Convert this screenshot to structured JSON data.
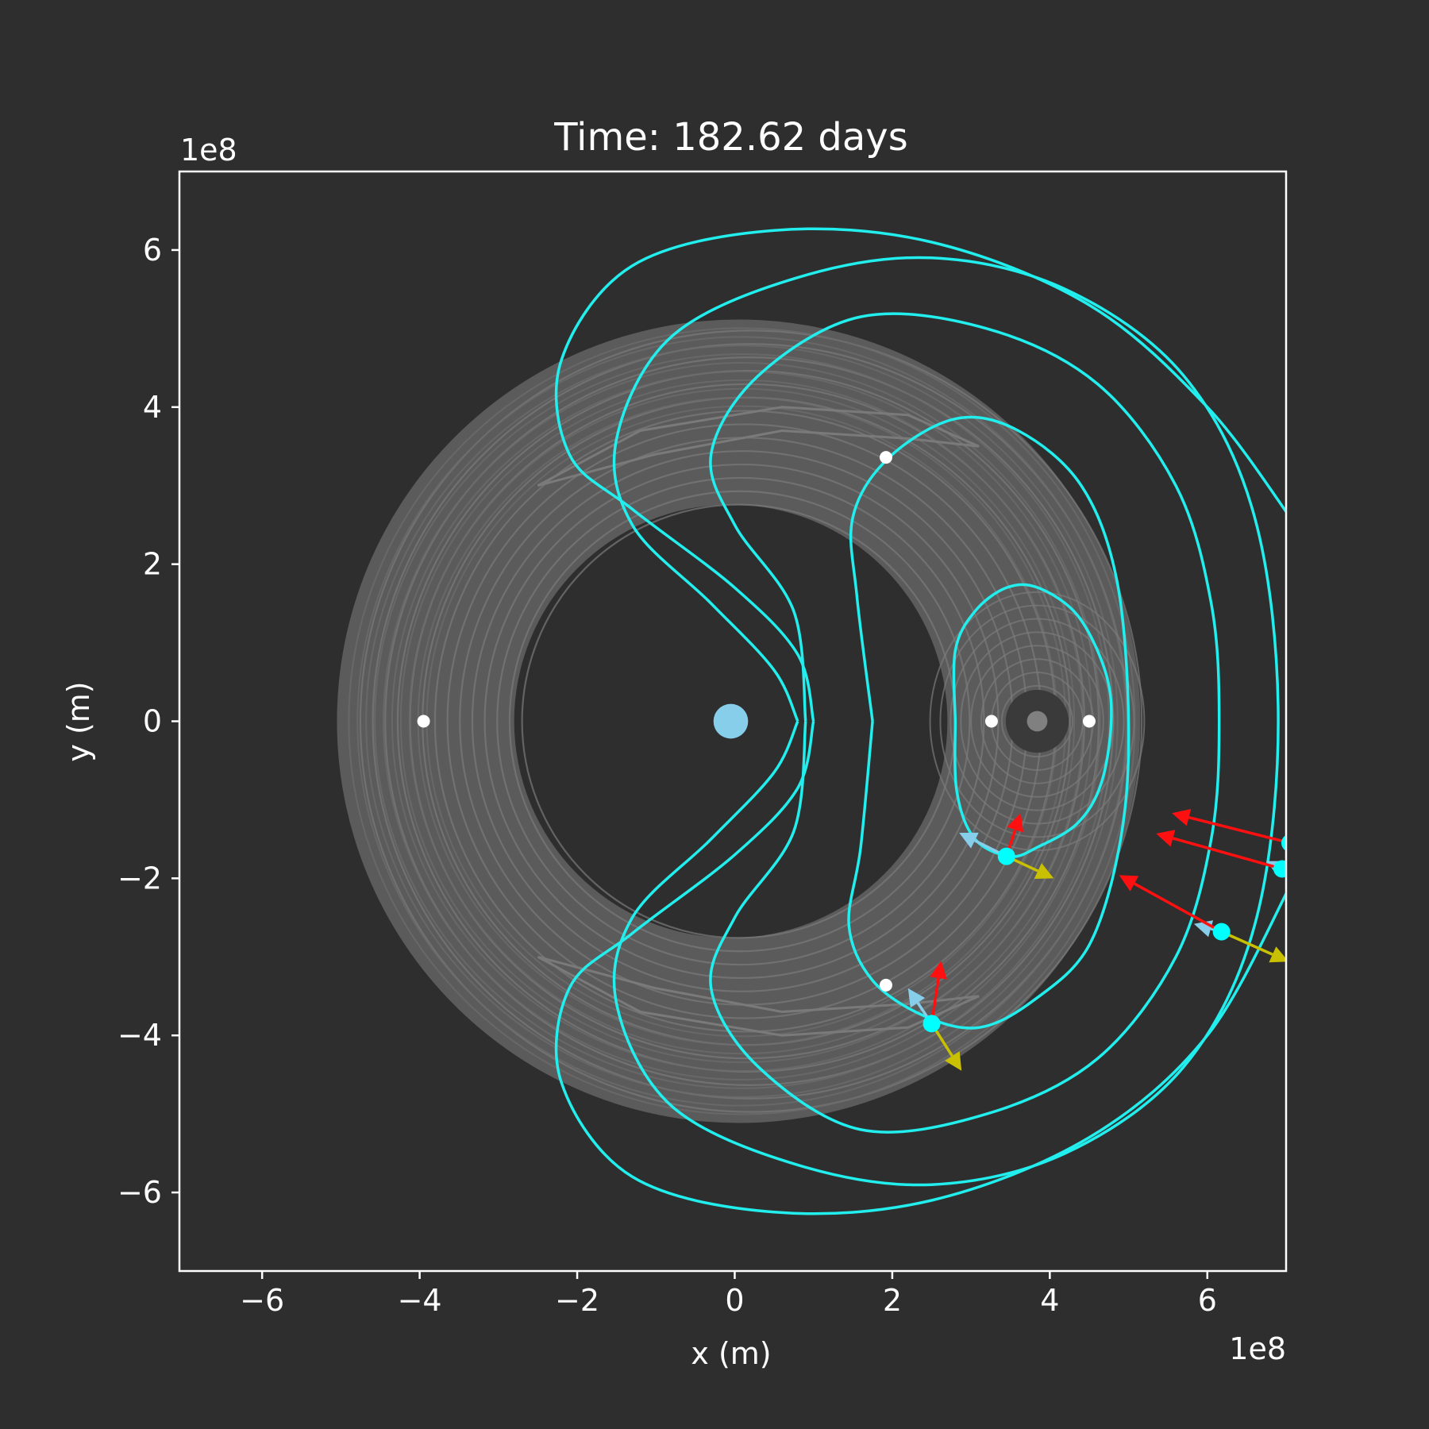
{
  "chart_data": {
    "type": "scatter",
    "title": "Time: 182.62 days",
    "xlabel": "x (m)",
    "ylabel": "y (m)",
    "x_offset_label": "1e8",
    "y_offset_label": "1e8",
    "xlim": [
      -7.05,
      7.0
    ],
    "ylim": [
      -7.0,
      7.0
    ],
    "x_ticks": [
      -6,
      -4,
      -2,
      0,
      2,
      4,
      6
    ],
    "y_ticks": [
      -6,
      -4,
      -2,
      0,
      2,
      4,
      6
    ],
    "x_tick_labels": [
      "−6",
      "−4",
      "−2",
      "0",
      "2",
      "4",
      "6"
    ],
    "y_tick_labels": [
      "−6",
      "−4",
      "−2",
      "0",
      "2",
      "4",
      "6"
    ],
    "grid": false,
    "colors": {
      "background": "#2e2e2e",
      "axes": "#ffffff",
      "contour": "#7a7a7a",
      "contour_fill": "#5e5e5e",
      "zero_velocity_curve": "#22eeee",
      "earth": "#87ceeb",
      "moon": "#808080",
      "lagrange_point": "#ffffff",
      "test_particle": "#00ffff",
      "velocity_arrow": "#87ceeb",
      "acceleration_arrow": "#ff1010",
      "force_arrow": "#c8c000"
    },
    "bodies": [
      {
        "name": "earth",
        "x": -0.05,
        "y": 0.0,
        "radius": 0.22
      },
      {
        "name": "moon",
        "x": 3.84,
        "y": 0.0,
        "radius": 0.13
      }
    ],
    "lagrange_points": [
      {
        "x": 3.26,
        "y": 0.0
      },
      {
        "x": 4.5,
        "y": 0.0
      },
      {
        "x": -3.95,
        "y": 0.0
      },
      {
        "x": 1.92,
        "y": 3.36
      },
      {
        "x": 1.92,
        "y": -3.36
      }
    ],
    "particles": [
      {
        "x": 3.45,
        "y": -1.72,
        "arrows": [
          {
            "kind": "velocity",
            "dx": -0.6,
            "dy": 0.3
          },
          {
            "kind": "acceleration",
            "dx": 0.18,
            "dy": 0.55
          },
          {
            "kind": "force",
            "dx": 0.6,
            "dy": -0.28
          }
        ]
      },
      {
        "x": 2.5,
        "y": -3.85,
        "arrows": [
          {
            "kind": "velocity",
            "dx": -0.3,
            "dy": 0.45
          },
          {
            "kind": "acceleration",
            "dx": 0.12,
            "dy": 0.8
          },
          {
            "kind": "force",
            "dx": 0.38,
            "dy": -0.6
          }
        ]
      },
      {
        "x": 6.18,
        "y": -2.68,
        "arrows": [
          {
            "kind": "velocity",
            "dx": -0.35,
            "dy": 0.1
          },
          {
            "kind": "acceleration",
            "dx": -1.3,
            "dy": 0.72
          },
          {
            "kind": "force",
            "dx": 0.85,
            "dy": -0.38
          }
        ]
      },
      {
        "x": 6.95,
        "y": -1.88,
        "arrows": [
          {
            "kind": "velocity",
            "dx": -0.2,
            "dy": 0.1
          },
          {
            "kind": "acceleration",
            "dx": -1.6,
            "dy": 0.45
          }
        ]
      },
      {
        "x": 7.05,
        "y": -1.55,
        "arrows": [
          {
            "kind": "acceleration",
            "dx": -1.5,
            "dy": 0.38
          }
        ]
      }
    ],
    "zero_velocity_curves": [
      [
        [
          1.0,
          0.0
        ],
        [
          0.8,
          0.85
        ],
        [
          0.0,
          1.7
        ],
        [
          -1.3,
          2.7
        ],
        [
          -2.1,
          3.4
        ],
        [
          -2.2,
          4.6
        ],
        [
          -1.3,
          5.8
        ],
        [
          0.5,
          6.25
        ],
        [
          2.5,
          6.1
        ],
        [
          4.5,
          5.3
        ],
        [
          6.0,
          4.0
        ],
        [
          7.05,
          2.6
        ]
      ],
      [
        [
          1.0,
          0.0
        ],
        [
          0.8,
          -0.85
        ],
        [
          0.0,
          -1.7
        ],
        [
          -1.3,
          -2.7
        ],
        [
          -2.1,
          -3.4
        ],
        [
          -2.2,
          -4.6
        ],
        [
          -1.3,
          -5.8
        ],
        [
          0.5,
          -6.25
        ],
        [
          2.5,
          -6.1
        ],
        [
          4.5,
          -5.3
        ],
        [
          6.0,
          -4.0
        ],
        [
          7.05,
          -2.1
        ]
      ],
      [
        [
          0.8,
          0.0
        ],
        [
          0.5,
          0.65
        ],
        [
          -0.3,
          1.5
        ],
        [
          -1.3,
          2.5
        ],
        [
          -1.5,
          3.6
        ],
        [
          -0.8,
          4.9
        ],
        [
          0.8,
          5.65
        ],
        [
          2.5,
          5.9
        ],
        [
          4.2,
          5.5
        ],
        [
          5.7,
          4.4
        ],
        [
          6.6,
          2.6
        ],
        [
          6.9,
          0.0
        ],
        [
          6.6,
          -2.6
        ],
        [
          5.7,
          -4.4
        ],
        [
          4.2,
          -5.5
        ],
        [
          2.5,
          -5.9
        ],
        [
          0.8,
          -5.65
        ],
        [
          -0.8,
          -4.9
        ],
        [
          -1.5,
          -3.6
        ],
        [
          -1.3,
          -2.5
        ],
        [
          -0.3,
          -1.5
        ],
        [
          0.5,
          -0.65
        ],
        [
          0.8,
          0.0
        ]
      ],
      [
        [
          0.9,
          0.0
        ],
        [
          0.75,
          1.4
        ],
        [
          0.0,
          2.5
        ],
        [
          -0.3,
          3.4
        ],
        [
          0.3,
          4.4
        ],
        [
          1.6,
          5.15
        ],
        [
          3.2,
          5.0
        ],
        [
          4.6,
          4.3
        ],
        [
          5.6,
          3.0
        ],
        [
          6.05,
          1.5
        ],
        [
          6.15,
          0.0
        ],
        [
          6.05,
          -1.5
        ],
        [
          5.6,
          -3.0
        ],
        [
          4.6,
          -4.3
        ],
        [
          3.2,
          -5.0
        ],
        [
          1.6,
          -5.2
        ],
        [
          0.3,
          -4.4
        ],
        [
          -0.3,
          -3.4
        ],
        [
          0.0,
          -2.5
        ],
        [
          0.75,
          -1.4
        ],
        [
          0.9,
          0.0
        ]
      ],
      [
        [
          1.75,
          0.0
        ],
        [
          1.55,
          1.6
        ],
        [
          1.5,
          2.6
        ],
        [
          1.95,
          3.35
        ],
        [
          2.8,
          3.85
        ],
        [
          3.6,
          3.7
        ],
        [
          4.4,
          3.0
        ],
        [
          4.85,
          1.8
        ],
        [
          5.0,
          0.0
        ],
        [
          4.9,
          -1.5
        ],
        [
          4.5,
          -2.85
        ],
        [
          3.8,
          -3.55
        ],
        [
          3.1,
          -3.9
        ],
        [
          2.4,
          -3.75
        ],
        [
          1.75,
          -3.3
        ],
        [
          1.45,
          -2.6
        ],
        [
          1.6,
          -1.6
        ],
        [
          1.75,
          0.0
        ]
      ],
      [
        [
          2.8,
          0.0
        ],
        [
          2.8,
          0.9
        ],
        [
          3.05,
          1.4
        ],
        [
          3.45,
          1.7
        ],
        [
          3.85,
          1.7
        ],
        [
          4.35,
          1.35
        ],
        [
          4.7,
          0.65
        ],
        [
          4.78,
          0.0
        ],
        [
          4.65,
          -0.8
        ],
        [
          4.35,
          -1.3
        ],
        [
          3.85,
          -1.6
        ],
        [
          3.5,
          -1.72
        ],
        [
          3.05,
          -1.5
        ],
        [
          2.82,
          -0.9
        ],
        [
          2.8,
          0.0
        ]
      ]
    ]
  }
}
